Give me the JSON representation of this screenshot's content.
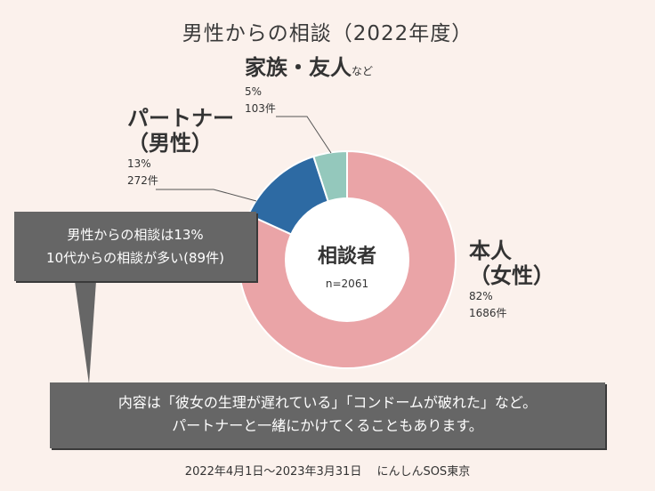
{
  "chart_data": {
    "type": "pie",
    "style": "donut",
    "title": "男性からの相談（2022年度）",
    "center_title": "相談者",
    "center_sub": "n=2061",
    "slices": [
      {
        "label": "本人",
        "label2": "（女性）",
        "percent_label": "82%",
        "count_label": "1686件",
        "value": 1686,
        "percent": 82,
        "color": "#eaa4a7"
      },
      {
        "label": "パートナー",
        "label2": "（男性）",
        "percent_label": "13%",
        "count_label": "272件",
        "value": 272,
        "percent": 13,
        "color": "#2d6aa3"
      },
      {
        "label": "家族・友人",
        "label_suffix": "など",
        "percent_label": "5%",
        "count_label": "103件",
        "value": 103,
        "percent": 5,
        "color": "#94c8bc"
      }
    ]
  },
  "callouts": {
    "upper": {
      "line1": "男性からの相談は13%",
      "line2": "10代からの相談が多い(89件)"
    },
    "lower": {
      "line1": "内容は「彼女の生理が遅れている」「コンドームが破れた」など。",
      "line2": "パートナーと一緒にかけてくることもあります。"
    }
  },
  "footer": "2022年4月1日～2023年3月31日　 にんしんSOS東京",
  "colors": {
    "background": "#fbf1ec",
    "callout": "#666666",
    "leader": "#555555"
  }
}
